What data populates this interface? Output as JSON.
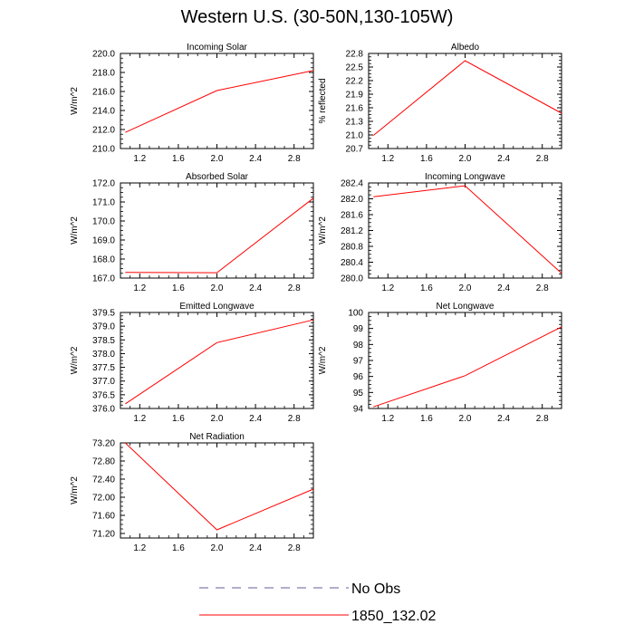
{
  "title": "Western U.S. (30-50N,130-105W)",
  "colors": {
    "series": "#ff0000",
    "obs": "#6a5a9a",
    "frame": "#000000"
  },
  "legend": {
    "entries": [
      {
        "label": "No Obs",
        "style": "dashed",
        "color": "#6a5a9a"
      },
      {
        "label": "1850_132.02",
        "style": "solid",
        "color": "#ff0000"
      }
    ]
  },
  "chart_data": [
    {
      "type": "line",
      "title": "Incoming Solar",
      "ylabel": "W/m^2",
      "xlim": [
        1,
        3
      ],
      "ylim": [
        210,
        220
      ],
      "xticks": [
        1.2,
        1.6,
        2.0,
        2.4,
        2.8
      ],
      "xtick_labels": [
        "1.2",
        "1.6",
        "2.0",
        "2.4",
        "2.8"
      ],
      "yticks": [
        210,
        212,
        214,
        216,
        218,
        220
      ],
      "ytick_labels": [
        "210.0",
        "212.0",
        "214.0",
        "216.0",
        "218.0",
        "220.0"
      ],
      "series": [
        {
          "name": "1850_132.02",
          "x": [
            1.05,
            2.0,
            3.0
          ],
          "y": [
            211.7,
            216.1,
            218.2
          ]
        }
      ]
    },
    {
      "type": "line",
      "title": "Albedo",
      "ylabel": "% reflected",
      "xlim": [
        1,
        3
      ],
      "ylim": [
        20.7,
        22.8
      ],
      "xticks": [
        1.2,
        1.6,
        2.0,
        2.4,
        2.8
      ],
      "xtick_labels": [
        "1.2",
        "1.6",
        "2.0",
        "2.4",
        "2.8"
      ],
      "yticks": [
        20.7,
        21.0,
        21.3,
        21.6,
        21.9,
        22.2,
        22.5,
        22.8
      ],
      "ytick_labels": [
        "20.7",
        "21.0",
        "21.3",
        "21.6",
        "21.9",
        "22.2",
        "22.5",
        "22.8"
      ],
      "series": [
        {
          "name": "1850_132.02",
          "x": [
            1.05,
            2.0,
            3.0
          ],
          "y": [
            20.99,
            22.64,
            21.48
          ]
        }
      ]
    },
    {
      "type": "line",
      "title": "Absorbed Solar",
      "ylabel": "W/m^2",
      "xlim": [
        1,
        3
      ],
      "ylim": [
        167,
        172
      ],
      "xticks": [
        1.2,
        1.6,
        2.0,
        2.4,
        2.8
      ],
      "xtick_labels": [
        "1.2",
        "1.6",
        "2.0",
        "2.4",
        "2.8"
      ],
      "yticks": [
        167,
        168,
        169,
        170,
        171,
        172
      ],
      "ytick_labels": [
        "167.0",
        "168.0",
        "169.0",
        "170.0",
        "171.0",
        "172.0"
      ],
      "series": [
        {
          "name": "1850_132.02",
          "x": [
            1.05,
            2.0,
            3.0
          ],
          "y": [
            167.3,
            167.28,
            171.2
          ]
        }
      ]
    },
    {
      "type": "line",
      "title": "Incoming Longwave",
      "ylabel": "W/m^2",
      "xlim": [
        1,
        3
      ],
      "ylim": [
        280.0,
        282.4
      ],
      "xticks": [
        1.2,
        1.6,
        2.0,
        2.4,
        2.8
      ],
      "xtick_labels": [
        "1.2",
        "1.6",
        "2.0",
        "2.4",
        "2.8"
      ],
      "yticks": [
        280.0,
        280.4,
        280.8,
        281.2,
        281.6,
        282.0,
        282.4
      ],
      "ytick_labels": [
        "280.0",
        "280.4",
        "280.8",
        "281.2",
        "281.6",
        "282.0",
        "282.4"
      ],
      "series": [
        {
          "name": "1850_132.02",
          "x": [
            1.05,
            2.0,
            3.0
          ],
          "y": [
            282.05,
            282.33,
            280.12
          ]
        }
      ]
    },
    {
      "type": "line",
      "title": "Emitted Longwave",
      "ylabel": "W/m^2",
      "xlim": [
        1,
        3
      ],
      "ylim": [
        376.0,
        379.5
      ],
      "xticks": [
        1.2,
        1.6,
        2.0,
        2.4,
        2.8
      ],
      "xtick_labels": [
        "1.2",
        "1.6",
        "2.0",
        "2.4",
        "2.8"
      ],
      "yticks": [
        376.0,
        376.5,
        377.0,
        377.5,
        378.0,
        378.5,
        379.0,
        379.5
      ],
      "ytick_labels": [
        "376.0",
        "376.5",
        "377.0",
        "377.5",
        "378.0",
        "378.5",
        "379.0",
        "379.5"
      ],
      "series": [
        {
          "name": "1850_132.02",
          "x": [
            1.05,
            2.0,
            3.0
          ],
          "y": [
            376.17,
            378.4,
            379.23
          ]
        }
      ]
    },
    {
      "type": "line",
      "title": "Net Longwave",
      "ylabel": "W/m^2",
      "xlim": [
        1,
        3
      ],
      "ylim": [
        94,
        100
      ],
      "xticks": [
        1.2,
        1.6,
        2.0,
        2.4,
        2.8
      ],
      "xtick_labels": [
        "1.2",
        "1.6",
        "2.0",
        "2.4",
        "2.8"
      ],
      "yticks": [
        94,
        95,
        96,
        97,
        98,
        99,
        100
      ],
      "ytick_labels": [
        "94",
        "95",
        "96",
        "97",
        "98",
        "99",
        "100"
      ],
      "series": [
        {
          "name": "1850_132.02",
          "x": [
            1.05,
            2.0,
            3.0
          ],
          "y": [
            94.1,
            96.05,
            99.1
          ]
        }
      ]
    },
    {
      "type": "line",
      "title": "Net Radiation",
      "ylabel": "W/m^2",
      "xlim": [
        1,
        3
      ],
      "ylim": [
        71.1,
        73.2
      ],
      "xticks": [
        1.2,
        1.6,
        2.0,
        2.4,
        2.8
      ],
      "xtick_labels": [
        "1.2",
        "1.6",
        "2.0",
        "2.4",
        "2.8"
      ],
      "yticks": [
        71.2,
        71.6,
        72.0,
        72.4,
        72.8,
        73.2
      ],
      "ytick_labels": [
        "71.20",
        "71.60",
        "72.00",
        "72.40",
        "72.80",
        "73.20"
      ],
      "series": [
        {
          "name": "1850_132.02",
          "x": [
            1.05,
            2.0,
            3.0
          ],
          "y": [
            73.2,
            71.28,
            72.18
          ]
        }
      ]
    }
  ]
}
